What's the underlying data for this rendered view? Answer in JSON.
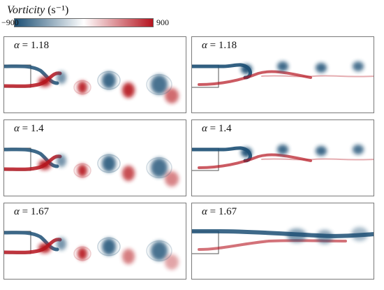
{
  "colorbar": {
    "title_symbol": "Vorticity",
    "title_unit": "(s⁻¹)",
    "min_label": "−900",
    "max_label": "900",
    "colors": {
      "negative": "#1c4f74",
      "zero": "#ffffff",
      "positive": "#b5141f"
    }
  },
  "panels": [
    {
      "id": "left-1",
      "alpha_symbol": "α",
      "alpha_value": "= 1.18"
    },
    {
      "id": "right-1",
      "alpha_symbol": "α",
      "alpha_value": "= 1.18"
    },
    {
      "id": "left-2",
      "alpha_symbol": "α",
      "alpha_value": "= 1.4"
    },
    {
      "id": "right-2",
      "alpha_symbol": "α",
      "alpha_value": "= 1.4"
    },
    {
      "id": "left-3",
      "alpha_symbol": "α",
      "alpha_value": "= 1.67"
    },
    {
      "id": "right-3",
      "alpha_symbol": "α",
      "alpha_value": "= 1.67"
    }
  ]
}
